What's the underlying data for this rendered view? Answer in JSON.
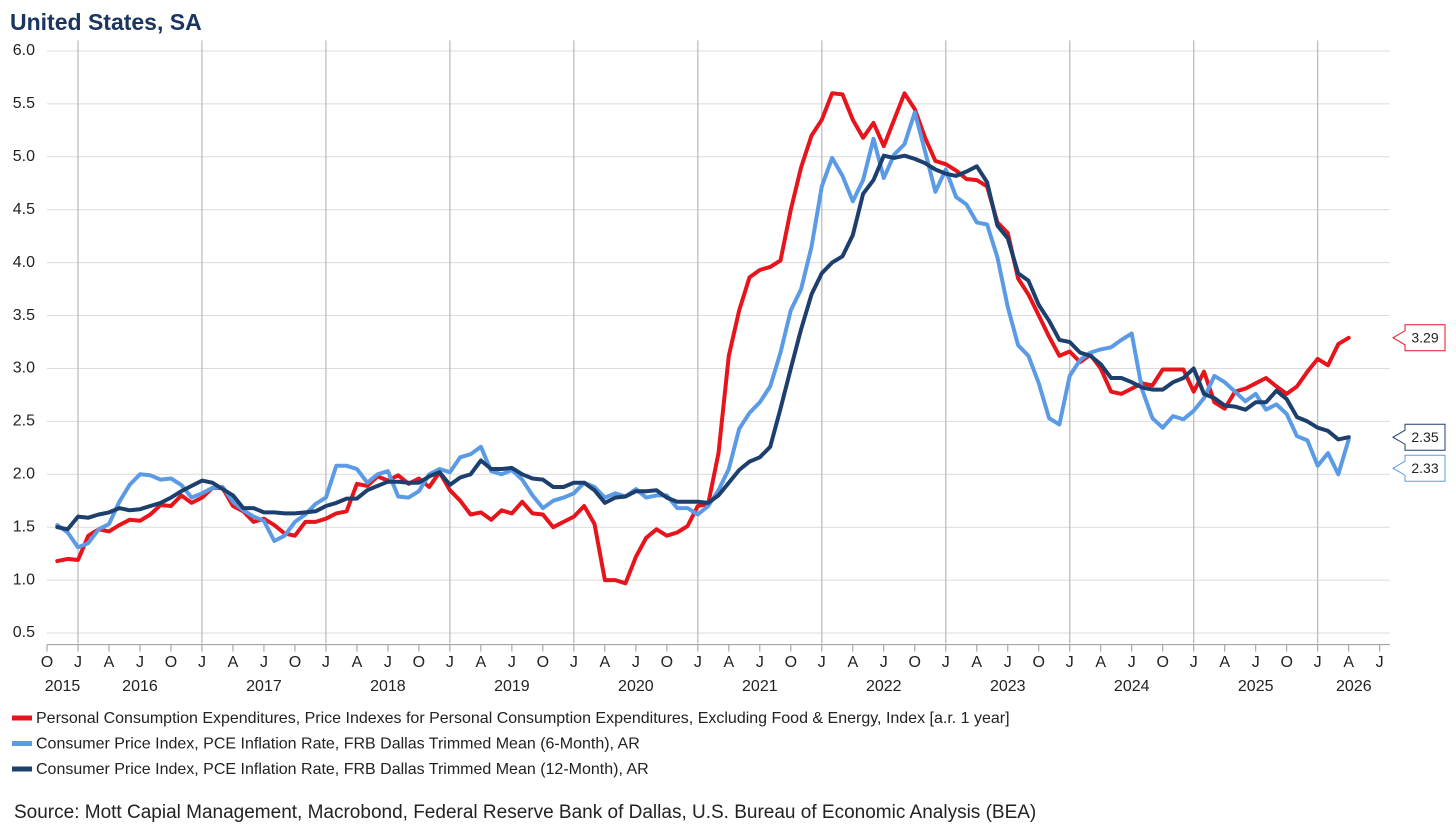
{
  "chart_data": {
    "type": "line",
    "title": "United States, SA",
    "source": "Source: Mott Capial Management, Macrobond, Federal Reserve Bank of Dallas, U.S. Bureau of Economic Analysis (BEA)",
    "x": [
      "2015-11",
      "2015-12",
      "2016-01",
      "2016-02",
      "2016-03",
      "2016-04",
      "2016-05",
      "2016-06",
      "2016-07",
      "2016-08",
      "2016-09",
      "2016-10",
      "2016-11",
      "2016-12",
      "2017-01",
      "2017-02",
      "2017-03",
      "2017-04",
      "2017-05",
      "2017-06",
      "2017-07",
      "2017-08",
      "2017-09",
      "2017-10",
      "2017-11",
      "2017-12",
      "2018-01",
      "2018-02",
      "2018-03",
      "2018-04",
      "2018-05",
      "2018-06",
      "2018-07",
      "2018-08",
      "2018-09",
      "2018-10",
      "2018-11",
      "2018-12",
      "2019-01",
      "2019-02",
      "2019-03",
      "2019-04",
      "2019-05",
      "2019-06",
      "2019-07",
      "2019-08",
      "2019-09",
      "2019-10",
      "2019-11",
      "2019-12",
      "2020-01",
      "2020-02",
      "2020-03",
      "2020-04",
      "2020-05",
      "2020-06",
      "2020-07",
      "2020-08",
      "2020-09",
      "2020-10",
      "2020-11",
      "2020-12",
      "2021-01",
      "2021-02",
      "2021-03",
      "2021-04",
      "2021-05",
      "2021-06",
      "2021-07",
      "2021-08",
      "2021-09",
      "2021-10",
      "2021-11",
      "2021-12",
      "2022-01",
      "2022-02",
      "2022-03",
      "2022-04",
      "2022-05",
      "2022-06",
      "2022-07",
      "2022-08",
      "2022-09",
      "2022-10",
      "2022-11",
      "2022-12",
      "2023-01",
      "2023-02",
      "2023-03",
      "2023-04",
      "2023-05",
      "2023-06",
      "2023-07",
      "2023-08",
      "2023-09",
      "2023-10",
      "2023-11",
      "2023-12",
      "2024-01",
      "2024-02",
      "2024-03",
      "2024-04",
      "2024-05",
      "2024-06",
      "2024-07",
      "2024-08",
      "2024-09",
      "2024-10",
      "2024-11",
      "2024-12",
      "2025-01",
      "2025-02",
      "2025-03",
      "2025-04",
      "2025-05",
      "2025-06",
      "2025-07",
      "2025-08",
      "2025-09",
      "2025-10",
      "2025-11",
      "2025-12",
      "2026-01",
      "2026-02",
      "2026-03",
      "2026-04"
    ],
    "series": [
      {
        "name": "Personal Consumption Expenditures, Price Indexes for Personal Consumption Expenditures, Excluding Food & Energy, Index [a.r. 1 year]",
        "color": "#e8141b",
        "values": [
          1.18,
          1.2,
          1.19,
          1.42,
          1.48,
          1.46,
          1.52,
          1.57,
          1.56,
          1.62,
          1.71,
          1.7,
          1.8,
          1.73,
          1.78,
          1.87,
          1.87,
          1.7,
          1.65,
          1.55,
          1.58,
          1.52,
          1.44,
          1.42,
          1.55,
          1.55,
          1.58,
          1.63,
          1.65,
          1.91,
          1.89,
          1.98,
          1.94,
          1.99,
          1.91,
          1.96,
          1.88,
          2.02,
          1.85,
          1.75,
          1.62,
          1.64,
          1.57,
          1.66,
          1.63,
          1.74,
          1.63,
          1.62,
          1.5,
          1.55,
          1.6,
          1.7,
          1.53,
          1.0,
          1.0,
          0.97,
          1.22,
          1.4,
          1.48,
          1.42,
          1.45,
          1.51,
          1.7,
          1.72,
          2.2,
          3.12,
          3.55,
          3.86,
          3.93,
          3.96,
          4.02,
          4.5,
          4.9,
          5.2,
          5.35,
          5.6,
          5.59,
          5.35,
          5.18,
          5.32,
          5.1,
          5.35,
          5.6,
          5.45,
          5.18,
          4.96,
          4.93,
          4.87,
          4.79,
          4.78,
          4.72,
          4.38,
          4.28,
          3.85,
          3.7,
          3.5,
          3.3,
          3.12,
          3.16,
          3.06,
          3.13,
          3.0,
          2.78,
          2.76,
          2.81,
          2.86,
          2.84,
          2.99,
          2.99,
          2.99,
          2.78,
          2.97,
          2.68,
          2.62,
          2.78,
          2.81,
          2.86,
          2.91,
          2.83,
          2.76,
          2.83,
          2.97,
          3.09,
          3.03,
          3.23,
          3.29
        ]
      },
      {
        "name": "Consumer Price Index, PCE Inflation Rate, FRB Dallas Trimmed Mean (6-Month), AR",
        "color": "#5b9be6",
        "values": [
          1.52,
          1.45,
          1.31,
          1.35,
          1.48,
          1.53,
          1.74,
          1.9,
          2.0,
          1.99,
          1.95,
          1.96,
          1.9,
          1.78,
          1.82,
          1.87,
          1.88,
          1.74,
          1.66,
          1.6,
          1.56,
          1.37,
          1.42,
          1.55,
          1.62,
          1.72,
          1.78,
          2.08,
          2.08,
          2.05,
          1.92,
          2.0,
          2.03,
          1.79,
          1.78,
          1.84,
          2.0,
          2.05,
          2.02,
          2.16,
          2.19,
          2.26,
          2.03,
          2.0,
          2.04,
          1.95,
          1.8,
          1.68,
          1.75,
          1.78,
          1.82,
          1.92,
          1.88,
          1.78,
          1.82,
          1.79,
          1.86,
          1.78,
          1.8,
          1.8,
          1.68,
          1.68,
          1.62,
          1.7,
          1.85,
          2.05,
          2.43,
          2.58,
          2.68,
          2.83,
          3.15,
          3.55,
          3.75,
          4.15,
          4.72,
          4.99,
          4.82,
          4.58,
          4.78,
          5.17,
          4.8,
          5.02,
          5.12,
          5.42,
          5.05,
          4.67,
          4.88,
          4.62,
          4.55,
          4.38,
          4.36,
          4.05,
          3.58,
          3.22,
          3.12,
          2.86,
          2.53,
          2.47,
          2.93,
          3.08,
          3.15,
          3.18,
          3.2,
          3.27,
          3.33,
          2.8,
          2.53,
          2.44,
          2.55,
          2.52,
          2.6,
          2.72,
          2.93,
          2.87,
          2.78,
          2.69,
          2.76,
          2.61,
          2.66,
          2.57,
          2.36,
          2.32,
          2.08,
          2.2,
          2.0,
          2.33
        ]
      },
      {
        "name": "Consumer Price Index, PCE Inflation Rate, FRB Dallas Trimmed Mean (12-Month), AR",
        "color": "#1c3f6e",
        "values": [
          1.5,
          1.48,
          1.6,
          1.59,
          1.62,
          1.64,
          1.68,
          1.66,
          1.67,
          1.7,
          1.73,
          1.78,
          1.84,
          1.89,
          1.94,
          1.92,
          1.86,
          1.8,
          1.68,
          1.68,
          1.64,
          1.64,
          1.63,
          1.63,
          1.64,
          1.65,
          1.7,
          1.73,
          1.77,
          1.77,
          1.85,
          1.89,
          1.93,
          1.93,
          1.92,
          1.92,
          1.98,
          2.02,
          1.9,
          1.97,
          2.0,
          2.13,
          2.05,
          2.05,
          2.06,
          2.0,
          1.96,
          1.95,
          1.88,
          1.88,
          1.92,
          1.92,
          1.85,
          1.73,
          1.78,
          1.79,
          1.84,
          1.84,
          1.85,
          1.78,
          1.74,
          1.74,
          1.74,
          1.73,
          1.8,
          1.92,
          2.04,
          2.12,
          2.16,
          2.26,
          2.62,
          3.0,
          3.37,
          3.7,
          3.9,
          4.0,
          4.06,
          4.26,
          4.65,
          4.78,
          5.01,
          4.99,
          5.01,
          4.98,
          4.94,
          4.88,
          4.84,
          4.82,
          4.86,
          4.91,
          4.76,
          4.35,
          4.23,
          3.9,
          3.83,
          3.6,
          3.45,
          3.27,
          3.25,
          3.15,
          3.12,
          3.04,
          2.91,
          2.91,
          2.87,
          2.82,
          2.8,
          2.8,
          2.87,
          2.91,
          3.0,
          2.76,
          2.72,
          2.65,
          2.64,
          2.61,
          2.68,
          2.68,
          2.79,
          2.71,
          2.54,
          2.5,
          2.44,
          2.41,
          2.33,
          2.35
        ]
      }
    ],
    "xlim": [
      "2015-10",
      "2026-08"
    ],
    "xticks": [
      {
        "value": "2015-10",
        "label": "O"
      },
      {
        "value": "2016-01",
        "label": "J"
      },
      {
        "value": "2016-04",
        "label": "A"
      },
      {
        "value": "2016-07",
        "label": "J"
      },
      {
        "value": "2016-10",
        "label": "O"
      },
      {
        "value": "2017-01",
        "label": "J"
      },
      {
        "value": "2017-04",
        "label": "A"
      },
      {
        "value": "2017-07",
        "label": "J"
      },
      {
        "value": "2017-10",
        "label": "O"
      },
      {
        "value": "2018-01",
        "label": "J"
      },
      {
        "value": "2018-04",
        "label": "A"
      },
      {
        "value": "2018-07",
        "label": "J"
      },
      {
        "value": "2018-10",
        "label": "O"
      },
      {
        "value": "2019-01",
        "label": "J"
      },
      {
        "value": "2019-04",
        "label": "A"
      },
      {
        "value": "2019-07",
        "label": "J"
      },
      {
        "value": "2019-10",
        "label": "O"
      },
      {
        "value": "2020-01",
        "label": "J"
      },
      {
        "value": "2020-04",
        "label": "A"
      },
      {
        "value": "2020-07",
        "label": "J"
      },
      {
        "value": "2020-10",
        "label": "O"
      },
      {
        "value": "2021-01",
        "label": "J"
      },
      {
        "value": "2021-04",
        "label": "A"
      },
      {
        "value": "2021-07",
        "label": "J"
      },
      {
        "value": "2021-10",
        "label": "O"
      },
      {
        "value": "2022-01",
        "label": "J"
      },
      {
        "value": "2022-04",
        "label": "A"
      },
      {
        "value": "2022-07",
        "label": "J"
      },
      {
        "value": "2022-10",
        "label": "O"
      },
      {
        "value": "2023-01",
        "label": "J"
      },
      {
        "value": "2023-04",
        "label": "A"
      },
      {
        "value": "2023-07",
        "label": "J"
      },
      {
        "value": "2023-10",
        "label": "O"
      },
      {
        "value": "2024-01",
        "label": "J"
      },
      {
        "value": "2024-04",
        "label": "A"
      },
      {
        "value": "2024-07",
        "label": "J"
      },
      {
        "value": "2024-10",
        "label": "O"
      },
      {
        "value": "2025-01",
        "label": "J"
      },
      {
        "value": "2025-04",
        "label": "A"
      },
      {
        "value": "2025-07",
        "label": "J"
      },
      {
        "value": "2025-10",
        "label": "O"
      },
      {
        "value": "2026-01",
        "label": "J"
      },
      {
        "value": "2026-04",
        "label": "A"
      },
      {
        "value": "2026-07",
        "label": "J"
      }
    ],
    "x_year_labels": [
      "2015",
      "2016",
      "2017",
      "2018",
      "2019",
      "2020",
      "2021",
      "2022",
      "2023",
      "2024",
      "2025",
      "2026"
    ],
    "ylim": [
      0.4,
      6.1
    ],
    "yticks": [
      {
        "value": 0.5,
        "label": "0.5"
      },
      {
        "value": 1,
        "label": "1.0"
      },
      {
        "value": 1.5,
        "label": "1.5"
      },
      {
        "value": 2,
        "label": "2.0"
      },
      {
        "value": 2.5,
        "label": "2.5"
      },
      {
        "value": 3,
        "label": "3.0"
      },
      {
        "value": 3.5,
        "label": "3.5"
      },
      {
        "value": 4,
        "label": "4.0"
      },
      {
        "value": 4.5,
        "label": "4.5"
      },
      {
        "value": 5,
        "label": "5.0"
      },
      {
        "value": 5.5,
        "label": "5.5"
      },
      {
        "value": 6,
        "label": "6.0"
      }
    ],
    "grid": true,
    "last_value_labels": true,
    "legend": "bottom"
  }
}
